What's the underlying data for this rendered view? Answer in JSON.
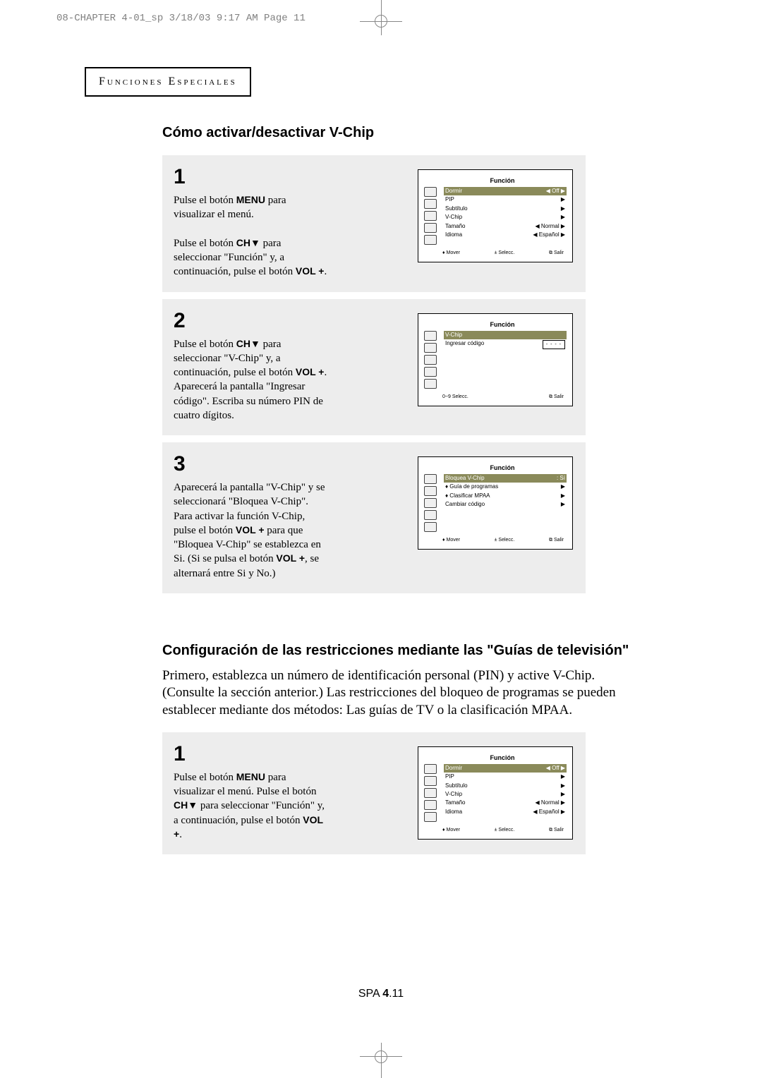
{
  "print_header": "08-CHAPTER 4-01_sp  3/18/03 9:17 AM  Page 11",
  "section_title": "Funciones Especiales",
  "heading1": "Cómo activar/desactivar V-Chip",
  "steps_a": [
    {
      "num": "1",
      "text_html": "Pulse el botón <b>MENU</b> para visualizar el menú.<br><br>Pulse el botón <b>CH▼</b> para seleccionar \"Función\" y, a continuación, pulse el botón <b>VOL +</b>.",
      "tv": {
        "title": "Función",
        "rows": [
          {
            "l": "Dormir",
            "r": "◀   Off   ▶",
            "hl": true
          },
          {
            "l": "PIP",
            "r": "▶"
          },
          {
            "l": "Subtítulo",
            "r": "▶"
          },
          {
            "l": "V-Chip",
            "r": "▶"
          },
          {
            "l": "Tamaño",
            "r": "◀ Normal ▶"
          },
          {
            "l": "Idioma",
            "r": "◀ Español ▶"
          }
        ],
        "footer": [
          "♦ Mover",
          "± Selecc.",
          "⧉ Salir"
        ]
      }
    },
    {
      "num": "2",
      "text_html": "Pulse el botón <b>CH▼</b> para seleccionar \"V-Chip\" y, a continuación, pulse el botón <b>VOL +</b>.<br>Aparecerá la pantalla \"Ingresar código\". Escriba su número PIN de cuatro dígitos.",
      "tv": {
        "title": "Función",
        "rows": [
          {
            "l": "V-Chip",
            "r": "",
            "hl": true
          },
          {
            "l": "Ingresar código",
            "r": "",
            "code": "- - - -"
          }
        ],
        "footer": [
          "0~9 Selecc.",
          "",
          "⧉ Salir"
        ],
        "tall": true
      }
    },
    {
      "num": "3",
      "text_html": "Aparecerá la pantalla \"V-Chip\" y se seleccionará \"Bloquea V-Chip\".<br>Para activar la función V-Chip, pulse el botón <b>VOL +</b> para que \"Bloquea V-Chip\" se establezca en Si. (Si se pulsa el botón <b>VOL +</b>, se alternará entre Si y No.)",
      "tv": {
        "title": "Función",
        "rows": [
          {
            "l": "Bloquea V-Chip",
            "r": ": Sí",
            "hl": true
          },
          {
            "l": "♦ Guía de programas",
            "r": "▶"
          },
          {
            "l": "♦ Clasificar MPAA",
            "r": "▶"
          },
          {
            "l": "Cambiar código",
            "r": "▶"
          }
        ],
        "footer": [
          "♦ Mover",
          "± Selecc.",
          "⧉ Salir"
        ]
      }
    }
  ],
  "heading2": "Configuración de las restricciones mediante las \"Guías de televisión\"",
  "intro": "Primero, establezca un número de identificación personal (PIN) y active V-Chip. (Consulte la sección anterior.) Las restricciones del bloqueo de programas se pueden establecer mediante dos métodos: Las guías de TV o la clasificación MPAA.",
  "steps_b": [
    {
      "num": "1",
      "text_html": "Pulse el botón <b>MENU</b> para visualizar el menú. Pulse el botón <b>CH▼</b> para seleccionar \"Función\" y, a continuación, pulse el botón <b>VOL +</b>.",
      "tv": {
        "title": "Función",
        "rows": [
          {
            "l": "Dormir",
            "r": "◀   Off   ▶",
            "hl": true
          },
          {
            "l": "PIP",
            "r": "▶"
          },
          {
            "l": "Subtítulo",
            "r": "▶"
          },
          {
            "l": "V-Chip",
            "r": "▶"
          },
          {
            "l": "Tamaño",
            "r": "◀ Normal ▶"
          },
          {
            "l": "Idioma",
            "r": "◀ Español ▶"
          }
        ],
        "footer": [
          "♦ Mover",
          "± Selecc.",
          "⧉ Salir"
        ]
      }
    }
  ],
  "page_number_prefix": "SPA ",
  "page_number_bold": "4",
  "page_number_suffix": ".11"
}
